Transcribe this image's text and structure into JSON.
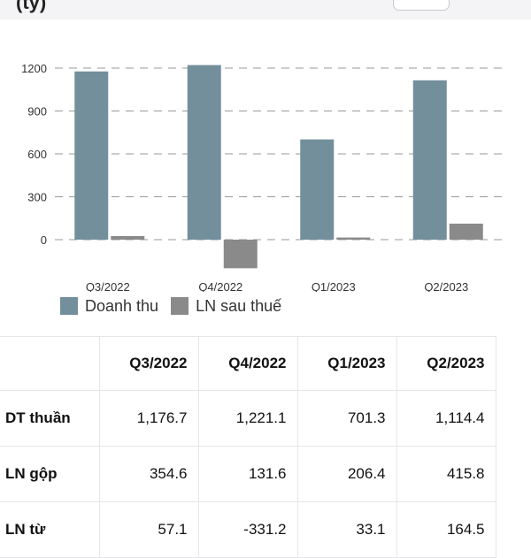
{
  "header": {
    "title_fragment": "(tỷ)",
    "toggle_label": ""
  },
  "chart_data": {
    "type": "bar",
    "categories": [
      "Q3/2022",
      "Q4/2022",
      "Q1/2023",
      "Q2/2023"
    ],
    "series": [
      {
        "name": "Doanh thu",
        "values": [
          1176.7,
          1221.1,
          701.3,
          1114.4
        ],
        "color": "#738f9c"
      },
      {
        "name": "LN sau thuế",
        "values": [
          25,
          -200,
          15,
          112
        ],
        "color": "#8a8a8a"
      }
    ],
    "yticks": [
      0,
      300,
      600,
      900,
      1200
    ],
    "ylim": [
      -220,
      1300
    ],
    "grid": true,
    "legend_position": "bottom-left"
  },
  "table": {
    "columns": [
      "",
      "Q3/2022",
      "Q4/2022",
      "Q1/2023",
      "Q2/2023"
    ],
    "rows": [
      {
        "label": "DT thuần",
        "values": [
          "1,176.7",
          "1,221.1",
          "701.3",
          "1,114.4"
        ]
      },
      {
        "label": "LN gộp",
        "values": [
          "354.6",
          "131.6",
          "206.4",
          "415.8"
        ]
      },
      {
        "label": "LN từ",
        "values": [
          "57.1",
          "-331.2",
          "33.1",
          "164.5"
        ]
      }
    ]
  }
}
